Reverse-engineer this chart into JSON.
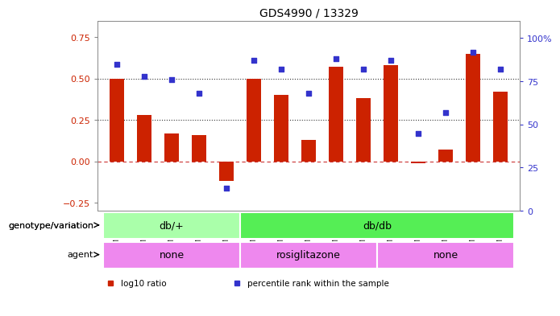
{
  "title": "GDS4990 / 13329",
  "samples": [
    "GSM904674",
    "GSM904675",
    "GSM904676",
    "GSM904677",
    "GSM904678",
    "GSM904684",
    "GSM904685",
    "GSM904686",
    "GSM904687",
    "GSM904688",
    "GSM904679",
    "GSM904680",
    "GSM904681",
    "GSM904682",
    "GSM904683"
  ],
  "log10_ratio": [
    0.5,
    0.28,
    0.17,
    0.16,
    -0.12,
    0.5,
    0.4,
    0.13,
    0.57,
    0.38,
    0.58,
    -0.01,
    0.07,
    0.65,
    0.42
  ],
  "percentile": [
    85,
    78,
    76,
    68,
    13,
    87,
    82,
    68,
    88,
    82,
    87,
    45,
    57,
    92,
    82
  ],
  "bar_color": "#cc2200",
  "dot_color": "#3333cc",
  "hline_0_color": "#cc3333",
  "hline_dotted_color": "#333333",
  "ylim_left": [
    -0.3,
    0.85
  ],
  "ylim_right": [
    0,
    110
  ],
  "yticks_left": [
    -0.25,
    0.0,
    0.25,
    0.5,
    0.75
  ],
  "yticks_right": [
    0,
    25,
    50,
    75,
    100
  ],
  "hlines_dotted": [
    0.25,
    0.5
  ],
  "genotype_groups": [
    {
      "label": "db/+",
      "start": 0,
      "end": 4,
      "color": "#aaffaa"
    },
    {
      "label": "db/db",
      "start": 5,
      "end": 14,
      "color": "#55ee55"
    }
  ],
  "agent_groups": [
    {
      "label": "none",
      "start": 0,
      "end": 4,
      "color": "#ee88ee"
    },
    {
      "label": "rosiglitazone",
      "start": 5,
      "end": 9,
      "color": "#ee88ee"
    },
    {
      "label": "none",
      "start": 10,
      "end": 14,
      "color": "#ee88ee"
    }
  ],
  "legend_items": [
    {
      "color": "#cc2200",
      "label": "log10 ratio"
    },
    {
      "color": "#3333cc",
      "label": "percentile rank within the sample"
    }
  ],
  "background_color": "#ffffff",
  "plot_bg_color": "#ffffff",
  "genotype_label": "genotype/variation",
  "agent_label": "agent"
}
